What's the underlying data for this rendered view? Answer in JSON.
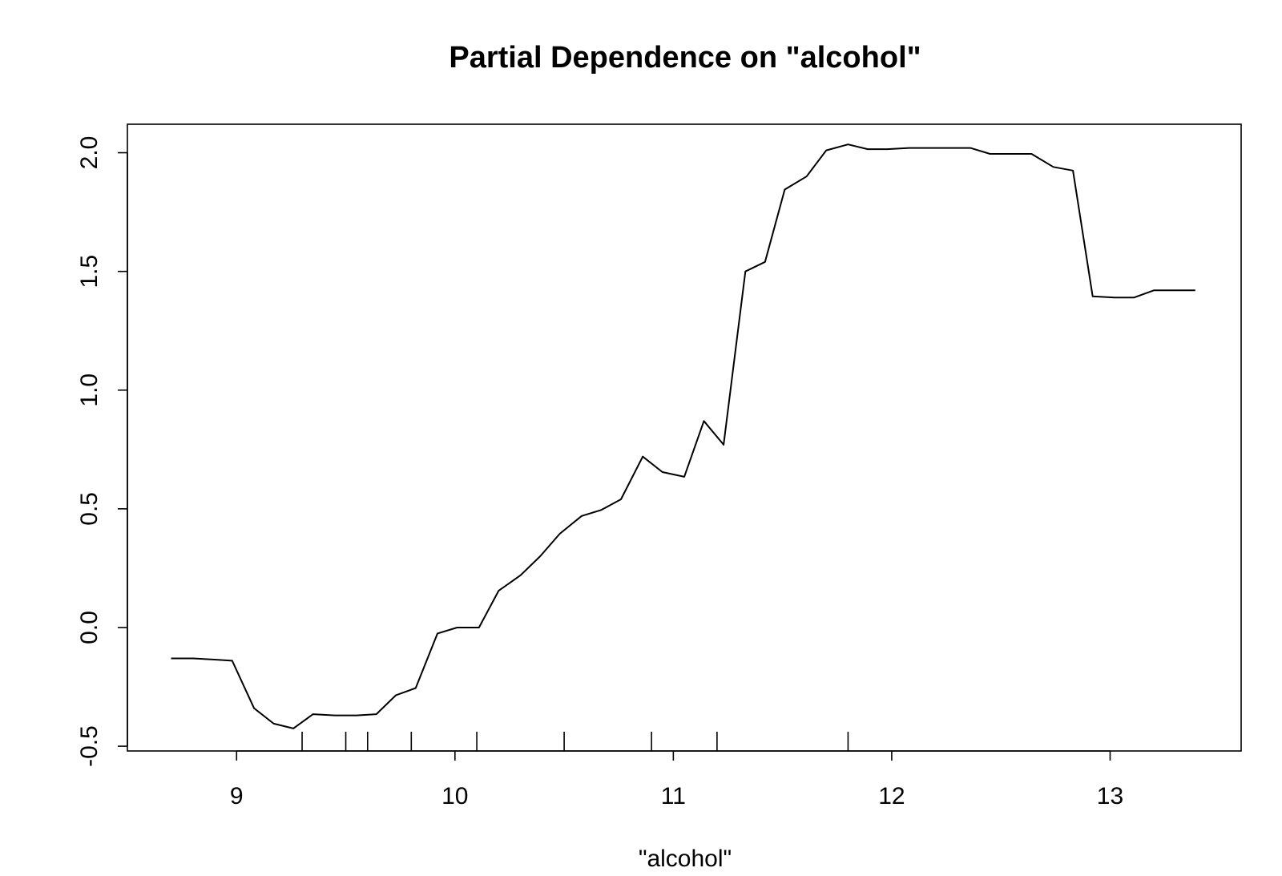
{
  "chart_data": {
    "type": "line",
    "title": "Partial Dependence on \"alcohol\"",
    "xlabel": "\"alcohol\"",
    "ylabel": "",
    "xlim": [
      8.5,
      13.6
    ],
    "ylim": [
      -0.52,
      2.12
    ],
    "x_ticks": [
      9,
      10,
      11,
      12,
      13
    ],
    "x_tick_labels": [
      "9",
      "10",
      "11",
      "12",
      "13"
    ],
    "y_ticks": [
      -0.5,
      0.0,
      0.5,
      1.0,
      1.5,
      2.0
    ],
    "y_tick_labels": [
      "-0.5",
      "0.0",
      "0.5",
      "1.0",
      "1.5",
      "2.0"
    ],
    "grid": false,
    "series": [
      {
        "x": [
          8.7,
          8.8,
          8.9,
          8.98,
          9.08,
          9.17,
          9.26,
          9.35,
          9.45,
          9.55,
          9.64,
          9.73,
          9.82,
          9.92,
          10.01,
          10.11,
          10.2,
          10.3,
          10.39,
          10.48,
          10.58,
          10.67,
          10.76,
          10.86,
          10.95,
          11.05,
          11.14,
          11.23,
          11.33,
          11.42,
          11.51,
          11.61,
          11.7,
          11.8,
          11.89,
          11.98,
          12.08,
          12.17,
          12.27,
          12.36,
          12.45,
          12.55,
          12.64,
          12.74,
          12.83,
          12.92,
          13.02,
          13.11,
          13.2,
          13.3,
          13.39
        ],
        "y": [
          -0.13,
          -0.13,
          -0.135,
          -0.14,
          -0.34,
          -0.405,
          -0.425,
          -0.365,
          -0.37,
          -0.37,
          -0.365,
          -0.285,
          -0.255,
          -0.025,
          0.0,
          0.0,
          0.155,
          0.22,
          0.3,
          0.395,
          0.47,
          0.495,
          0.54,
          0.72,
          0.655,
          0.635,
          0.87,
          0.77,
          1.5,
          1.54,
          1.845,
          1.9,
          2.01,
          2.035,
          2.015,
          2.015,
          2.02,
          2.02,
          2.02,
          2.02,
          1.995,
          1.995,
          1.995,
          1.94,
          1.925,
          1.395,
          1.39,
          1.39,
          1.42,
          1.42,
          1.42
        ]
      }
    ],
    "rug": [
      9.3,
      9.5,
      9.6,
      9.8,
      10.1,
      10.5,
      10.9,
      11.2,
      11.8
    ]
  }
}
